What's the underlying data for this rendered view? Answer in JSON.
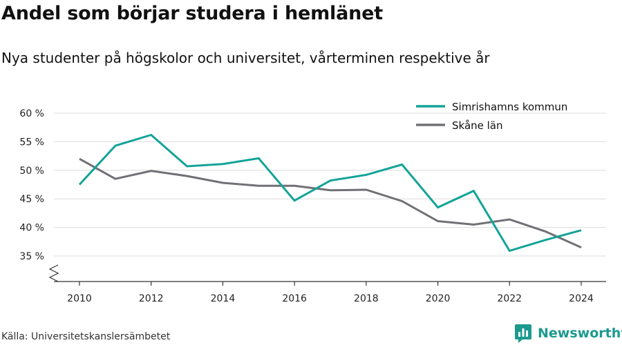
{
  "title": "Andel som börjar studera i hemlänet",
  "subtitle": "Nya studenter på högskolor och universitet, vårterminen respektive år",
  "source": "Källa: Universitetskanslersämbetet",
  "brand": {
    "name": "Newsworthy",
    "logo_icon": "bar-chart-logo-icon",
    "color": "#1c9a8e"
  },
  "chart_data": {
    "type": "line",
    "x": [
      2010,
      2011,
      2012,
      2013,
      2014,
      2015,
      2016,
      2017,
      2018,
      2019,
      2020,
      2021,
      2022,
      2023,
      2024
    ],
    "x_ticks": [
      "2010",
      "2012",
      "2014",
      "2016",
      "2018",
      "2020",
      "2022",
      "2024"
    ],
    "y_ticks": [
      "35 %",
      "40 %",
      "45 %",
      "50 %",
      "55 %",
      "60 %"
    ],
    "ylim": [
      30,
      62
    ],
    "y_axis_break": true,
    "grid": "horizontal",
    "legend_position": "top-right",
    "series": [
      {
        "name": "Simrishamns kommun",
        "color": "#13a398",
        "values": [
          47.5,
          54.3,
          56.2,
          50.7,
          51.1,
          52.1,
          44.7,
          48.2,
          49.2,
          51.0,
          43.5,
          46.4,
          35.9,
          37.8,
          39.5
        ]
      },
      {
        "name": "Skåne län",
        "color": "#707075",
        "values": [
          52.0,
          48.5,
          49.9,
          49.0,
          47.8,
          47.3,
          47.3,
          46.5,
          46.6,
          44.6,
          41.1,
          40.5,
          41.4,
          39.3,
          36.5
        ]
      }
    ]
  }
}
